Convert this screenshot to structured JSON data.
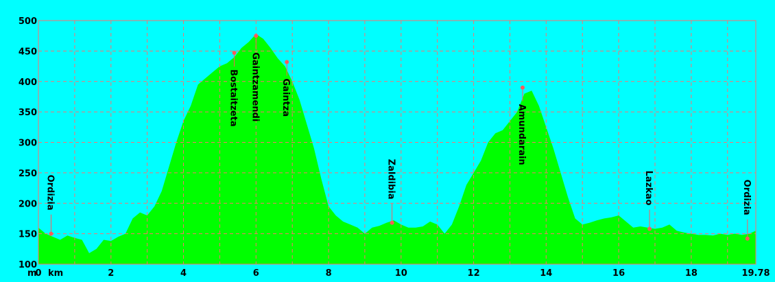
{
  "chart_data": {
    "type": "area",
    "title": "",
    "xlabel": "km",
    "ylabel": "m",
    "xlim": [
      0,
      19.78
    ],
    "ylim": [
      100,
      500
    ],
    "x_ticks": [
      "0",
      "2",
      "4",
      "6",
      "8",
      "10",
      "12",
      "14",
      "16",
      "18",
      "19.78"
    ],
    "y_ticks": [
      "100",
      "150",
      "200",
      "250",
      "300",
      "350",
      "400",
      "450",
      "500"
    ],
    "grid": {
      "x_step_km": 1,
      "y_step_m": 50,
      "style": "dashed"
    },
    "colors": {
      "background": "#00FFFF",
      "fill": "#00FF00",
      "grid": "#FF6E6E",
      "marker": "#FF5A5A"
    },
    "series": [
      {
        "x": [
          0,
          0.2,
          0.4,
          0.6,
          0.8,
          1.0,
          1.2,
          1.4,
          1.6,
          1.8,
          2.0,
          2.2,
          2.4,
          2.6,
          2.8,
          3.0,
          3.2,
          3.4,
          3.6,
          3.8,
          4.0,
          4.2,
          4.4,
          4.6,
          4.8,
          5.0,
          5.2,
          5.4,
          5.6,
          5.8,
          6.0,
          6.2,
          6.4,
          6.6,
          6.8,
          7.0,
          7.2,
          7.4,
          7.6,
          7.8,
          8.0,
          8.2,
          8.4,
          8.6,
          8.8,
          9.0,
          9.2,
          9.4,
          9.6,
          9.8,
          10.0,
          10.2,
          10.4,
          10.6,
          10.8,
          11.0,
          11.2,
          11.4,
          11.6,
          11.8,
          12.0,
          12.2,
          12.4,
          12.6,
          12.8,
          13.0,
          13.2,
          13.4,
          13.6,
          13.8,
          14.0,
          14.2,
          14.4,
          14.6,
          14.8,
          15.0,
          15.2,
          15.4,
          15.6,
          15.8,
          16.0,
          16.2,
          16.4,
          16.6,
          16.8,
          17.0,
          17.2,
          17.4,
          17.6,
          17.8,
          18.0,
          18.2,
          18.4,
          18.6,
          18.8,
          19.0,
          19.2,
          19.4,
          19.6,
          19.78
        ],
        "y": [
          160,
          150,
          145,
          140,
          147,
          143,
          140,
          118,
          125,
          140,
          138,
          145,
          150,
          175,
          185,
          180,
          195,
          220,
          260,
          300,
          335,
          360,
          395,
          405,
          415,
          425,
          430,
          440,
          455,
          465,
          478,
          470,
          455,
          438,
          425,
          400,
          370,
          330,
          290,
          240,
          195,
          180,
          170,
          165,
          160,
          150,
          160,
          163,
          168,
          172,
          165,
          160,
          160,
          162,
          170,
          165,
          150,
          165,
          195,
          230,
          250,
          270,
          300,
          315,
          320,
          335,
          350,
          380,
          385,
          360,
          325,
          290,
          250,
          210,
          175,
          165,
          168,
          172,
          175,
          177,
          180,
          170,
          160,
          162,
          160,
          158,
          160,
          165,
          155,
          152,
          150,
          148,
          148,
          147,
          150,
          148,
          150,
          148,
          150,
          155
        ]
      }
    ],
    "waypoints": [
      {
        "name": "Ordizia",
        "x": 0.35,
        "y": 150
      },
      {
        "name": "Bostaitzeta",
        "x": 5.4,
        "y": 447
      },
      {
        "name": "Gaintzamendi",
        "x": 6.0,
        "y": 475
      },
      {
        "name": "Gaintza",
        "x": 6.85,
        "y": 432
      },
      {
        "name": "Zaldibia",
        "x": 9.75,
        "y": 168
      },
      {
        "name": "Amundarain",
        "x": 13.35,
        "y": 390
      },
      {
        "name": "Lazkao",
        "x": 16.85,
        "y": 158
      },
      {
        "name": "Ordizia",
        "x": 19.55,
        "y": 142
      }
    ]
  }
}
